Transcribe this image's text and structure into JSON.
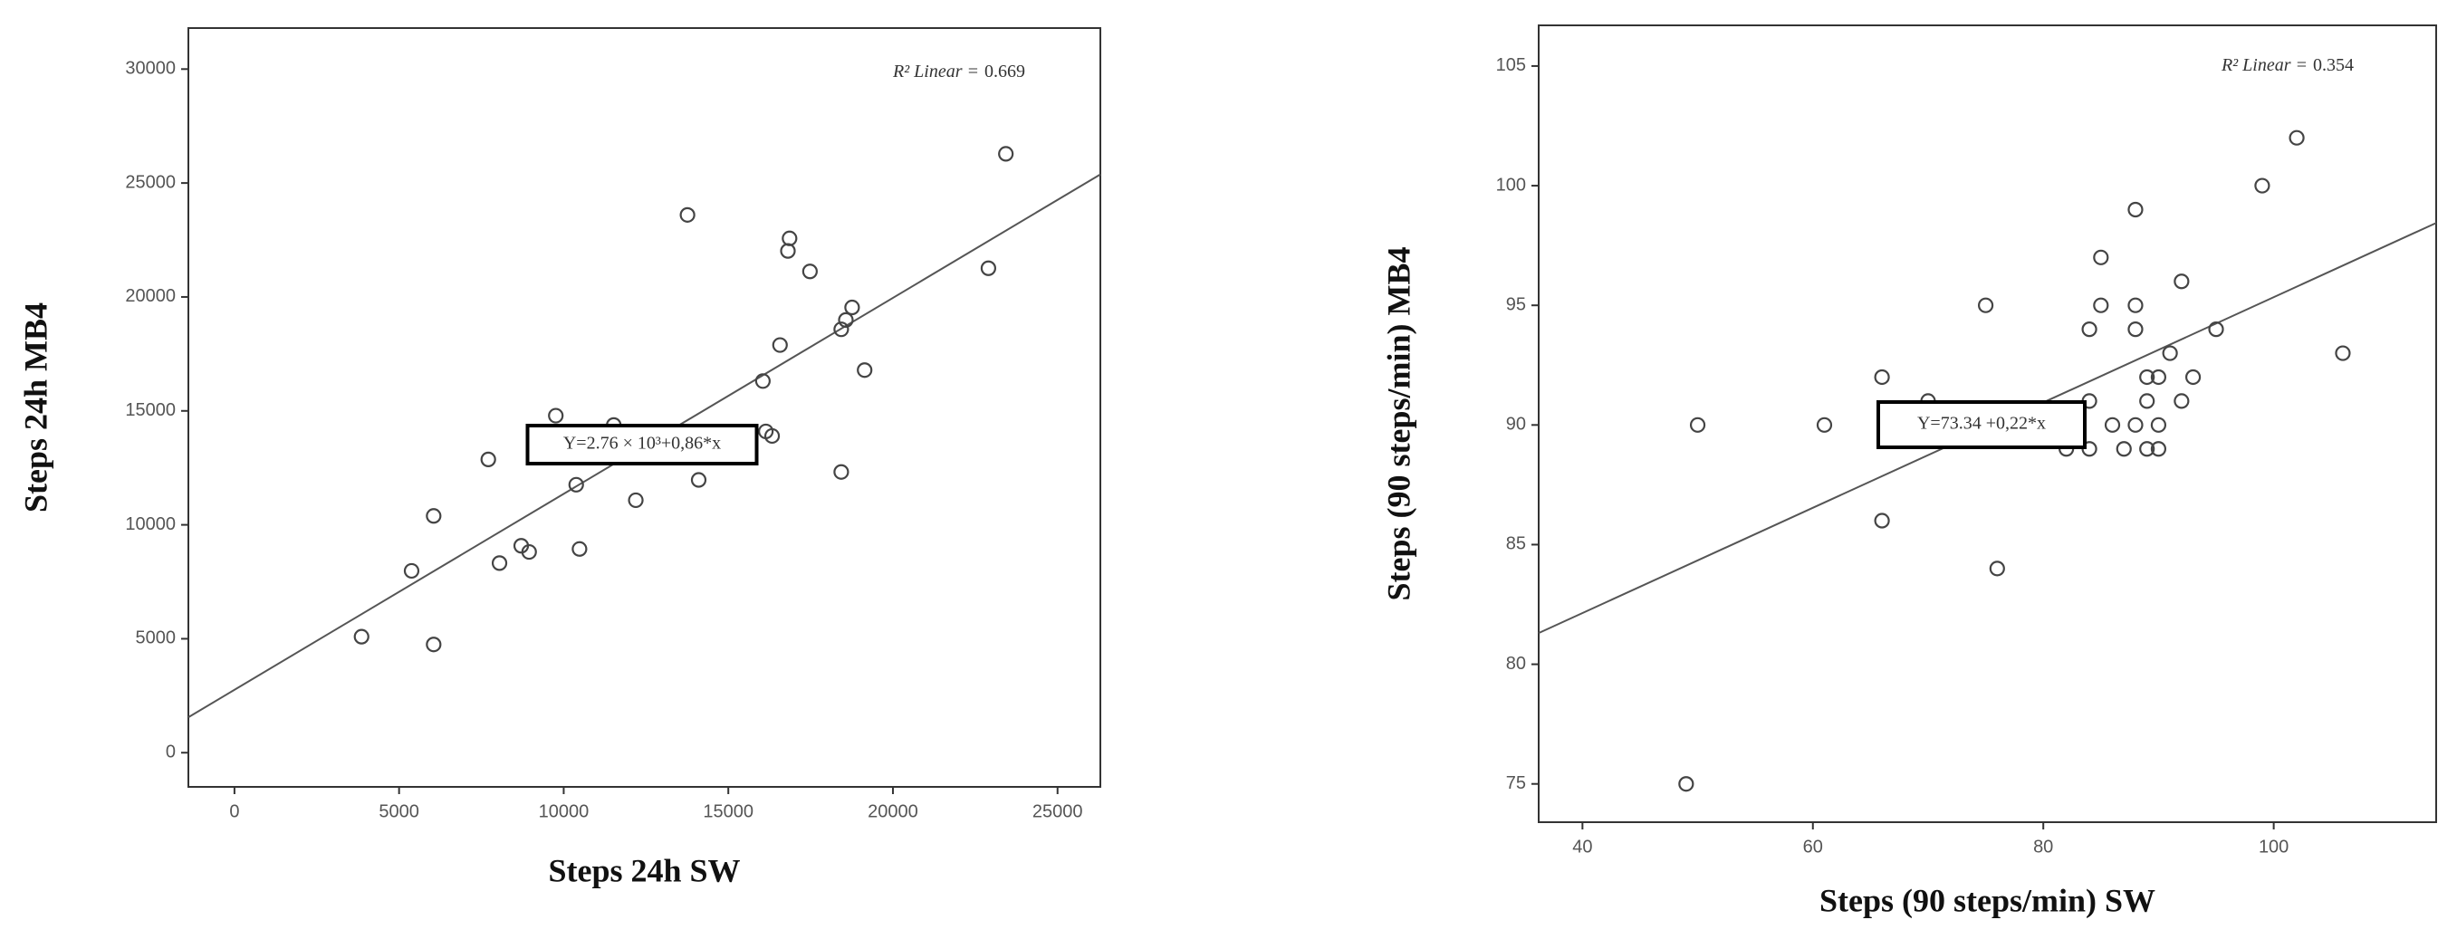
{
  "chart_data": [
    {
      "type": "scatter",
      "x_label": "Steps 24h SW",
      "y_label": "Steps 24h MB4",
      "r2_label": "R² Linear =",
      "r2": 0.669,
      "equation": "Y=2.76 × 10³+0,86*x",
      "fit": {
        "intercept": 2760,
        "slope": 0.86
      },
      "x": [
        3860,
        5380,
        6050,
        6050,
        7710,
        8050,
        8710,
        8950,
        9760,
        10380,
        10480,
        11520,
        12190,
        13760,
        14100,
        16050,
        16140,
        16330,
        16570,
        16810,
        16860,
        17480,
        18430,
        18430,
        18570,
        18760,
        19140,
        22900,
        23430
      ],
      "y": [
        5090,
        7980,
        10390,
        4750,
        12870,
        8320,
        9080,
        8810,
        14790,
        11760,
        8940,
        14380,
        11080,
        23600,
        11970,
        16310,
        14100,
        13900,
        17890,
        22020,
        22570,
        21120,
        12320,
        18580,
        18990,
        19540,
        16790,
        21260,
        26280
      ],
      "xlim": [
        -1400,
        26300
      ],
      "ylim": [
        -1500,
        31800
      ],
      "xticks": [
        0,
        5000,
        10000,
        15000,
        20000,
        25000
      ],
      "yticks": [
        0,
        5000,
        10000,
        15000,
        20000,
        25000,
        30000
      ],
      "color": "#444444"
    },
    {
      "type": "scatter",
      "x_label": "Steps (90 steps/min) SW",
      "y_label": "Steps (90 steps/min) MB4",
      "r2_label": "R² Linear =",
      "r2": 0.354,
      "equation": "Y=73.34 +0,22*x",
      "fit": {
        "intercept": 73.34,
        "slope": 0.22
      },
      "x": [
        49,
        50,
        61,
        66,
        66,
        70,
        75,
        76,
        82,
        84,
        84,
        84,
        85,
        85,
        86,
        87,
        88,
        88,
        88,
        88,
        89,
        89,
        89,
        90,
        90,
        90,
        91,
        92,
        92,
        93,
        95,
        99,
        102,
        106
      ],
      "y": [
        75,
        90,
        90,
        92,
        86,
        91,
        95,
        84,
        89,
        94,
        91,
        89,
        95,
        97,
        90,
        89,
        99,
        95,
        94,
        90,
        92,
        91,
        89,
        92,
        90,
        89,
        93,
        96,
        91,
        92,
        94,
        100,
        102,
        93
      ],
      "xlim": [
        36.2,
        114.1
      ],
      "ylim": [
        73.4,
        106.7
      ],
      "xticks": [
        40,
        60,
        80,
        100
      ],
      "yticks": [
        75,
        80,
        85,
        90,
        95,
        100,
        105
      ],
      "color": "#444444"
    }
  ]
}
